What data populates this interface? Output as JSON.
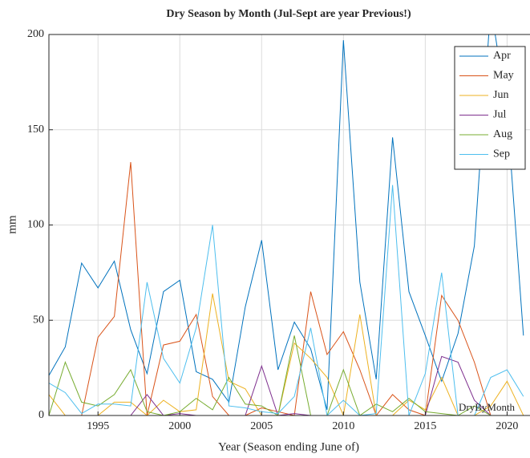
{
  "chart_data": {
    "type": "line",
    "title": "Dry Season by Month (Jul-Sept are year Previous!)",
    "xlabel": "Year (Season ending June of)",
    "ylabel": "mm",
    "annotation": "DryByMonth",
    "x": [
      1992,
      1993,
      1994,
      1995,
      1996,
      1997,
      1998,
      1999,
      2000,
      2001,
      2002,
      2003,
      2004,
      2005,
      2006,
      2007,
      2008,
      2009,
      2010,
      2011,
      2012,
      2013,
      2014,
      2015,
      2016,
      2017,
      2018,
      2019,
      2020,
      2021
    ],
    "series": [
      {
        "name": "Apr",
        "color": "#0072BD",
        "values": [
          21,
          36,
          80,
          67,
          81,
          45,
          22,
          65,
          71,
          23,
          19,
          7,
          57,
          92,
          24,
          49,
          35,
          3,
          197,
          70,
          19,
          146,
          65,
          42,
          18,
          43,
          89,
          215,
          160,
          42
        ]
      },
      {
        "name": "May",
        "color": "#D95319",
        "values": [
          0,
          0,
          0,
          41,
          52,
          133,
          0,
          37,
          39,
          53,
          10,
          0,
          0,
          4,
          2,
          0,
          65,
          32,
          44,
          24,
          0,
          11,
          3,
          0,
          63,
          50,
          28,
          0,
          0,
          0
        ]
      },
      {
        "name": "Jun",
        "color": "#EDB120",
        "values": [
          11,
          0,
          0,
          0,
          7,
          7,
          0,
          8,
          2,
          3,
          64,
          18,
          14,
          0,
          0,
          38,
          30,
          20,
          0,
          53,
          0,
          0,
          8,
          3,
          20,
          0,
          0,
          5,
          18,
          0
        ]
      },
      {
        "name": "Jul",
        "color": "#7E2F8E",
        "values": [
          0,
          0,
          0,
          0,
          0,
          0,
          11,
          0,
          1,
          0,
          0,
          0,
          0,
          26,
          0,
          1,
          0,
          0,
          0,
          0,
          0,
          0,
          0,
          0,
          31,
          28,
          8,
          0,
          0,
          0
        ]
      },
      {
        "name": "Aug",
        "color": "#77AC30",
        "values": [
          0,
          28,
          7,
          5,
          11,
          24,
          2,
          0,
          2,
          9,
          3,
          20,
          6,
          5,
          0,
          42,
          0,
          0,
          24,
          0,
          6,
          2,
          9,
          2,
          1,
          0,
          5,
          0,
          0,
          0
        ]
      },
      {
        "name": "Sep",
        "color": "#4DBEEE",
        "values": [
          17,
          12,
          1,
          6,
          6,
          5,
          70,
          30,
          17,
          46,
          100,
          5,
          4,
          2,
          1,
          10,
          46,
          0,
          8,
          0,
          1,
          121,
          0,
          22,
          75,
          0,
          0,
          20,
          24,
          10
        ]
      }
    ],
    "xlim": [
      1992,
      2021.4
    ],
    "xticks": [
      1995,
      2000,
      2005,
      2010,
      2015,
      2020
    ],
    "ylim": [
      0,
      200
    ],
    "yticks": [
      0,
      50,
      100,
      150,
      200
    ],
    "grid": true,
    "legend": "northeast"
  }
}
